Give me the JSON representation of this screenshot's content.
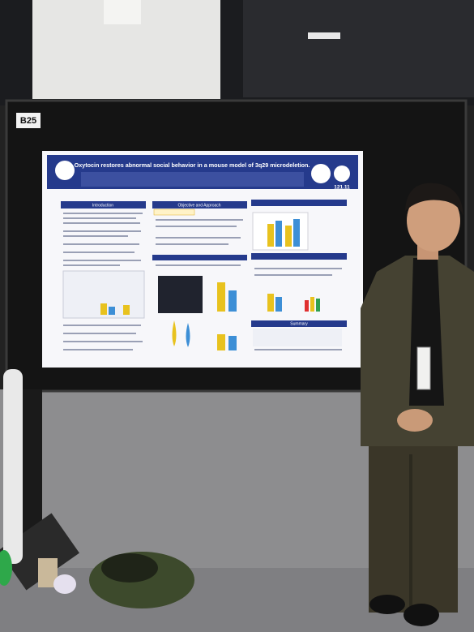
{
  "booth_label": "B25",
  "poster": {
    "title": "Oxytocin restores abnormal social behavior in a mouse model of 3q29 microdeletion.",
    "abstract_number": "121.11",
    "sections": [
      "Introduction",
      "Objective and Approach",
      "Summary"
    ]
  }
}
